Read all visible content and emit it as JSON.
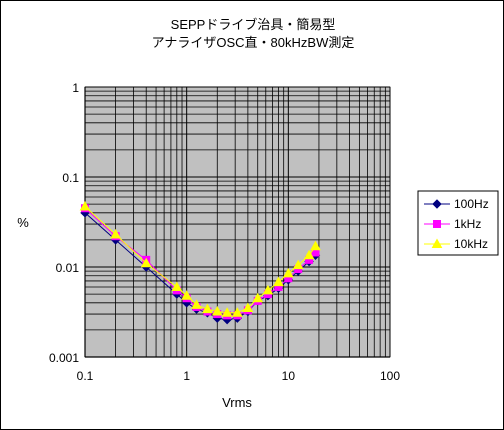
{
  "chart_data": {
    "type": "line",
    "title": "SEPPドライブ治具・簡易型",
    "subtitle": "アナライザOSC直・80kHzBW測定",
    "xlabel": "Vrms",
    "ylabel": "%",
    "xscale": "log",
    "yscale": "log",
    "xlim": [
      0.1,
      100
    ],
    "ylim": [
      0.001,
      1
    ],
    "xticks": [
      0.1,
      1,
      10,
      100
    ],
    "xtick_labels": [
      "0.1",
      "1",
      "10",
      "100"
    ],
    "yticks": [
      0.001,
      0.01,
      0.1,
      1
    ],
    "ytick_labels": [
      "0.001",
      "0.01",
      "0.1",
      "1"
    ],
    "grid": true,
    "legend_position": "right",
    "plot_background": "#c0c0c0",
    "series": [
      {
        "name": "100Hz",
        "color": "#000080",
        "marker": "diamond",
        "x": [
          0.1,
          0.2,
          0.4,
          0.8,
          1.0,
          1.25,
          1.6,
          2.0,
          2.5,
          3.15,
          4.0,
          5.0,
          6.3,
          8.0,
          10,
          12.5,
          16,
          18.5
        ],
        "y": [
          0.04,
          0.02,
          0.01,
          0.005,
          0.004,
          0.0034,
          0.0031,
          0.0027,
          0.0026,
          0.0027,
          0.0032,
          0.0042,
          0.0048,
          0.0058,
          0.0072,
          0.009,
          0.0115,
          0.0135
        ]
      },
      {
        "name": "1kHz",
        "color": "#ff00ff",
        "marker": "square",
        "x": [
          0.1,
          0.2,
          0.4,
          0.8,
          1.0,
          1.25,
          1.6,
          2.0,
          2.5,
          3.15,
          4.0,
          5.0,
          6.3,
          8.0,
          10,
          12.5,
          16,
          18.5
        ],
        "y": [
          0.045,
          0.022,
          0.012,
          0.0055,
          0.0045,
          0.0036,
          0.0032,
          0.003,
          0.0029,
          0.0029,
          0.0033,
          0.0042,
          0.005,
          0.006,
          0.0075,
          0.0095,
          0.012,
          0.0145
        ]
      },
      {
        "name": "10kHz",
        "color": "#ffff00",
        "marker": "triangle",
        "x": [
          0.1,
          0.2,
          0.4,
          0.8,
          1.0,
          1.25,
          1.6,
          2.0,
          2.5,
          3.15,
          4.0,
          5.0,
          6.3,
          8.0,
          10,
          12.5,
          16,
          18.5
        ],
        "y": [
          0.047,
          0.023,
          0.011,
          0.006,
          0.0048,
          0.0038,
          0.0034,
          0.0032,
          0.0031,
          0.0031,
          0.0035,
          0.0045,
          0.0055,
          0.0068,
          0.0085,
          0.0105,
          0.0135,
          0.017
        ]
      }
    ]
  }
}
